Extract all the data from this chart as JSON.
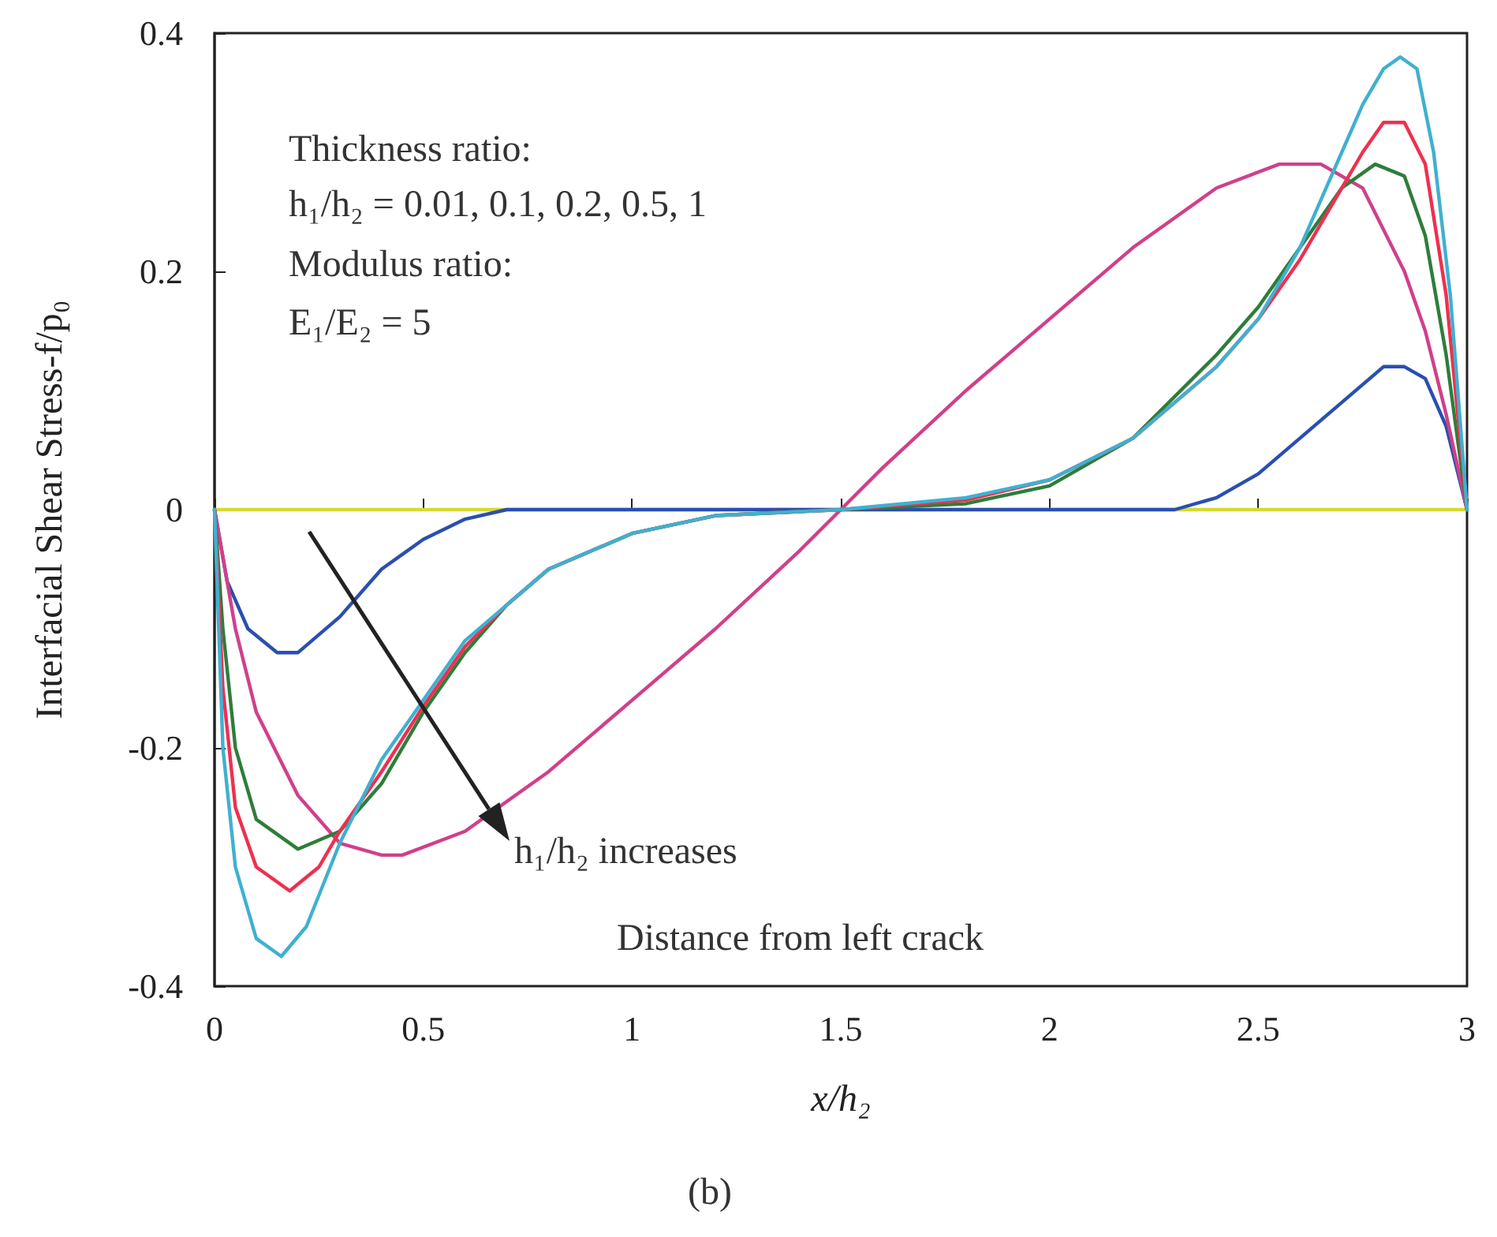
{
  "chart_data": {
    "type": "line",
    "xlabel": "x/h₂",
    "ylabel": "Interfacial Shear Stress-f/p₀",
    "xlim": [
      0,
      3
    ],
    "xticks": [
      0,
      0.5,
      1,
      1.5,
      2,
      2.5,
      3
    ],
    "ylim": [
      -0.4,
      0.4
    ],
    "yticks": [
      -0.4,
      -0.2,
      0,
      0.2,
      0.4
    ],
    "grid": false,
    "marker": "none",
    "line_style": "solid",
    "series": [
      {
        "color": "#d8d830",
        "x": [
          0,
          3
        ],
        "values": [
          0,
          0
        ]
      },
      {
        "color": "#2a4fb0",
        "x": [
          0,
          0.03,
          0.08,
          0.15,
          0.2,
          0.3,
          0.4,
          0.5,
          0.6,
          0.7,
          2.3,
          2.4,
          2.5,
          2.6,
          2.7,
          2.8,
          2.85,
          2.9,
          2.95,
          3
        ],
        "values": [
          0,
          -0.06,
          -0.1,
          -0.12,
          -0.12,
          -0.09,
          -0.05,
          -0.025,
          -0.008,
          0,
          0,
          0.01,
          0.03,
          0.06,
          0.09,
          0.12,
          0.12,
          0.11,
          0.07,
          0
        ]
      },
      {
        "color": "#d0408a",
        "x": [
          0,
          0.05,
          0.1,
          0.2,
          0.3,
          0.4,
          0.45,
          0.6,
          0.8,
          1,
          1.2,
          1.4,
          1.5,
          1.6,
          1.8,
          2,
          2.2,
          2.4,
          2.55,
          2.65,
          2.75,
          2.85,
          2.9,
          2.95,
          3
        ],
        "values": [
          0,
          -0.1,
          -0.17,
          -0.24,
          -0.28,
          -0.29,
          -0.29,
          -0.27,
          -0.22,
          -0.16,
          -0.1,
          -0.035,
          0,
          0.035,
          0.1,
          0.16,
          0.22,
          0.27,
          0.29,
          0.29,
          0.27,
          0.2,
          0.15,
          0.08,
          0
        ]
      },
      {
        "color": "#2e7d3a",
        "x": [
          0,
          0.02,
          0.05,
          0.1,
          0.2,
          0.3,
          0.4,
          0.5,
          0.6,
          0.7,
          0.8,
          1,
          1.2,
          1.5,
          1.8,
          2,
          2.2,
          2.4,
          2.5,
          2.6,
          2.7,
          2.78,
          2.85,
          2.9,
          2.95,
          3
        ],
        "values": [
          0,
          -0.1,
          -0.2,
          -0.26,
          -0.285,
          -0.27,
          -0.23,
          -0.17,
          -0.12,
          -0.08,
          -0.05,
          -0.02,
          -0.005,
          0,
          0.005,
          0.02,
          0.06,
          0.13,
          0.17,
          0.22,
          0.27,
          0.29,
          0.28,
          0.23,
          0.13,
          0
        ]
      },
      {
        "color": "#ee3050",
        "x": [
          0,
          0.02,
          0.05,
          0.1,
          0.18,
          0.25,
          0.3,
          0.4,
          0.5,
          0.6,
          0.7,
          0.8,
          1,
          1.2,
          1.5,
          1.8,
          2,
          2.2,
          2.4,
          2.5,
          2.6,
          2.7,
          2.75,
          2.8,
          2.85,
          2.9,
          2.95,
          3
        ],
        "values": [
          0,
          -0.15,
          -0.25,
          -0.3,
          -0.32,
          -0.3,
          -0.27,
          -0.22,
          -0.165,
          -0.115,
          -0.08,
          -0.05,
          -0.02,
          -0.005,
          0,
          0.008,
          0.025,
          0.06,
          0.12,
          0.16,
          0.21,
          0.27,
          0.3,
          0.325,
          0.325,
          0.29,
          0.18,
          0
        ]
      },
      {
        "color": "#40b0d0",
        "x": [
          0,
          0.02,
          0.05,
          0.1,
          0.16,
          0.22,
          0.3,
          0.4,
          0.5,
          0.6,
          0.7,
          0.8,
          1,
          1.2,
          1.5,
          1.8,
          2,
          2.2,
          2.4,
          2.5,
          2.6,
          2.7,
          2.75,
          2.8,
          2.84,
          2.88,
          2.92,
          2.96,
          3
        ],
        "values": [
          0,
          -0.2,
          -0.3,
          -0.36,
          -0.375,
          -0.35,
          -0.28,
          -0.21,
          -0.16,
          -0.11,
          -0.08,
          -0.05,
          -0.02,
          -0.005,
          0,
          0.01,
          0.025,
          0.06,
          0.12,
          0.16,
          0.22,
          0.3,
          0.34,
          0.37,
          0.38,
          0.37,
          0.3,
          0.18,
          0
        ]
      }
    ],
    "annotations": [
      "Thickness ratio:",
      "h₁/h₂ = 0.01, 0.1, 0.2, 0.5, 1",
      "Modulus ratio:",
      "E₁/E₂ = 5",
      "h₁/h₂ increases",
      "Distance from left crack",
      "(b)"
    ]
  }
}
